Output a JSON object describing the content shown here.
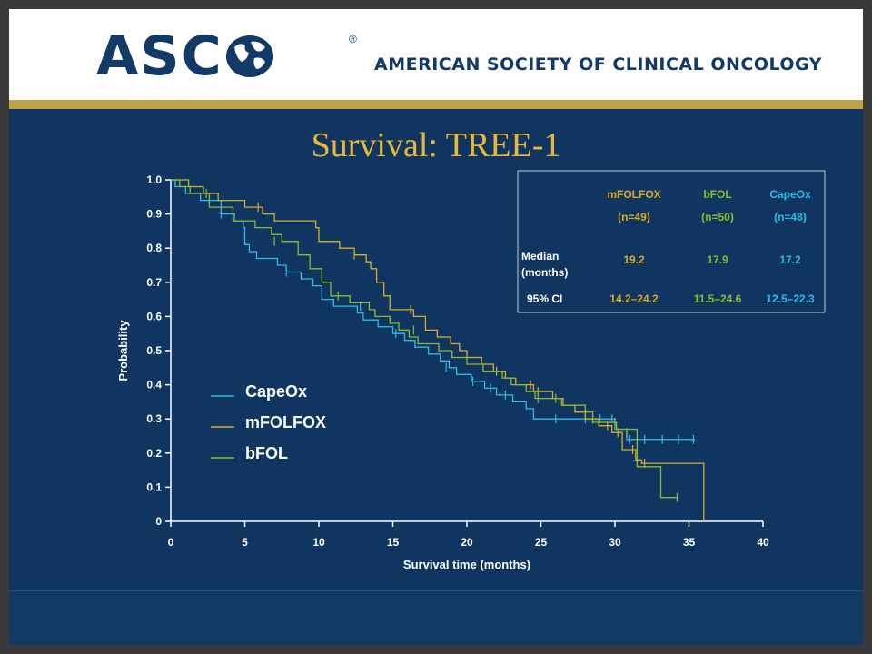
{
  "header": {
    "logo_text": "ASC",
    "logo_reg": "®",
    "org_name": "AMERICAN SOCIETY OF CLINICAL ONCOLOGY"
  },
  "slide_title": "Survival: TREE-1",
  "colors": {
    "CapeOx": "#2bbde6",
    "mFOLFOX": "#d4ad2c",
    "bFOL": "#8dbb2c",
    "background": "#0f3560",
    "title": "#e9b739"
  },
  "legend": [
    {
      "name": "CapeOx",
      "color": "#2bbde6"
    },
    {
      "name": "mFOLFOX",
      "color": "#d4ad2c"
    },
    {
      "name": "bFOL",
      "color": "#8dbb2c"
    }
  ],
  "median_table": {
    "columns": [
      {
        "name": "mFOLFOX",
        "n": "(n=49)",
        "median": "19.2",
        "ci": "14.2–24.2",
        "color": "#d4ad2c"
      },
      {
        "name": "bFOL",
        "n": "(n=50)",
        "median": "17.9",
        "ci": "11.5–24.6",
        "color": "#8dbb2c"
      },
      {
        "name": "CapeOx",
        "n": "(n=48)",
        "median": "17.2",
        "ci": "12.5–22.3",
        "color": "#2bbde6"
      }
    ],
    "row_label_median_1": "Median",
    "row_label_median_2": "(months)",
    "row_label_ci": "95% CI"
  },
  "chart_data": {
    "type": "line",
    "xlabel": "Survival time (months)",
    "ylabel": "Probability",
    "xlim": [
      0,
      40
    ],
    "ylim": [
      0,
      1
    ],
    "xticks": [
      0,
      5,
      10,
      15,
      20,
      25,
      30,
      35,
      40
    ],
    "xtick_labels": [
      "0",
      "5",
      "10",
      "15",
      "20",
      "25",
      "30",
      "35",
      "40"
    ],
    "yticks": [
      0,
      0.1,
      0.2,
      0.3,
      0.4,
      0.5,
      0.6,
      0.7,
      0.8,
      0.9,
      1.0
    ],
    "ytick_labels": [
      "0",
      "0.1",
      "0.2",
      "0.3",
      "0.4",
      "0.5",
      "0.6",
      "0.7",
      "0.8",
      "0.9",
      "1.0"
    ],
    "series": [
      {
        "name": "CapeOx",
        "color": "#2bbde6",
        "steps": [
          [
            0,
            1.0
          ],
          [
            0.3,
            0.98
          ],
          [
            1.0,
            0.96
          ],
          [
            2.0,
            0.94
          ],
          [
            3.4,
            0.9
          ],
          [
            4.3,
            0.88
          ],
          [
            4.9,
            0.86
          ],
          [
            5.0,
            0.81
          ],
          [
            5.3,
            0.79
          ],
          [
            5.8,
            0.77
          ],
          [
            7.2,
            0.75
          ],
          [
            7.8,
            0.73
          ],
          [
            8.8,
            0.71
          ],
          [
            9.6,
            0.69
          ],
          [
            10.2,
            0.65
          ],
          [
            11.0,
            0.63
          ],
          [
            12.0,
            0.63
          ],
          [
            12.6,
            0.61
          ],
          [
            13.0,
            0.59
          ],
          [
            14.0,
            0.57
          ],
          [
            15.0,
            0.55
          ],
          [
            15.8,
            0.53
          ],
          [
            16.5,
            0.51
          ],
          [
            17.4,
            0.49
          ],
          [
            18.2,
            0.47
          ],
          [
            18.8,
            0.45
          ],
          [
            19.3,
            0.43
          ],
          [
            20.3,
            0.41
          ],
          [
            21.2,
            0.39
          ],
          [
            22.0,
            0.37
          ],
          [
            23.1,
            0.35
          ],
          [
            24.0,
            0.33
          ],
          [
            24.5,
            0.3
          ],
          [
            29.5,
            0.3
          ],
          [
            30.0,
            0.27
          ],
          [
            30.8,
            0.24
          ],
          [
            35.4,
            0.24
          ]
        ],
        "censors": [
          [
            3.4,
            0.9
          ],
          [
            7.8,
            0.73
          ],
          [
            12.8,
            0.63
          ],
          [
            15.2,
            0.55
          ],
          [
            18.6,
            0.45
          ],
          [
            20.4,
            0.41
          ],
          [
            21.6,
            0.39
          ],
          [
            22.6,
            0.37
          ],
          [
            26.0,
            0.3
          ],
          [
            28.0,
            0.3
          ],
          [
            29.0,
            0.3
          ],
          [
            29.8,
            0.3
          ],
          [
            31.0,
            0.24
          ],
          [
            32.0,
            0.24
          ],
          [
            33.2,
            0.24
          ],
          [
            34.3,
            0.24
          ],
          [
            35.3,
            0.24
          ]
        ]
      },
      {
        "name": "mFOLFOX",
        "color": "#d4ad2c",
        "steps": [
          [
            0,
            1.0
          ],
          [
            1.2,
            0.98
          ],
          [
            2.2,
            0.96
          ],
          [
            3.2,
            0.94
          ],
          [
            5.0,
            0.92
          ],
          [
            6.2,
            0.9
          ],
          [
            7.0,
            0.88
          ],
          [
            8.8,
            0.88
          ],
          [
            9.8,
            0.86
          ],
          [
            10.0,
            0.82
          ],
          [
            11.4,
            0.8
          ],
          [
            12.4,
            0.78
          ],
          [
            13.2,
            0.76
          ],
          [
            13.5,
            0.74
          ],
          [
            13.9,
            0.7
          ],
          [
            14.4,
            0.66
          ],
          [
            14.8,
            0.62
          ],
          [
            16.4,
            0.6
          ],
          [
            17.2,
            0.56
          ],
          [
            18.0,
            0.54
          ],
          [
            18.9,
            0.52
          ],
          [
            19.5,
            0.5
          ],
          [
            20.0,
            0.48
          ],
          [
            21.0,
            0.46
          ],
          [
            21.8,
            0.44
          ],
          [
            22.6,
            0.42
          ],
          [
            23.3,
            0.4
          ],
          [
            24.5,
            0.38
          ],
          [
            25.8,
            0.36
          ],
          [
            26.5,
            0.34
          ],
          [
            27.3,
            0.32
          ],
          [
            28.0,
            0.3
          ],
          [
            28.9,
            0.28
          ],
          [
            29.8,
            0.26
          ],
          [
            30.5,
            0.21
          ],
          [
            31.4,
            0.18
          ],
          [
            31.8,
            0.17
          ],
          [
            36.0,
            0.17
          ],
          [
            36.0,
            0
          ]
        ],
        "censors": [
          [
            5.9,
            0.92
          ],
          [
            12.4,
            0.78
          ],
          [
            16.2,
            0.62
          ],
          [
            22.0,
            0.44
          ],
          [
            24.3,
            0.4
          ],
          [
            24.8,
            0.38
          ],
          [
            28.5,
            0.3
          ],
          [
            29.5,
            0.28
          ],
          [
            30.2,
            0.26
          ],
          [
            30.8,
            0.26
          ],
          [
            31.2,
            0.21
          ],
          [
            32.0,
            0.17
          ]
        ]
      },
      {
        "name": "bFOL",
        "color": "#8dbb2c",
        "steps": [
          [
            0,
            1.0
          ],
          [
            0.6,
            0.98
          ],
          [
            1.3,
            0.96
          ],
          [
            2.6,
            0.92
          ],
          [
            4.2,
            0.88
          ],
          [
            5.7,
            0.86
          ],
          [
            6.8,
            0.84
          ],
          [
            7.5,
            0.82
          ],
          [
            8.6,
            0.78
          ],
          [
            9.4,
            0.74
          ],
          [
            10.2,
            0.7
          ],
          [
            10.8,
            0.66
          ],
          [
            12.1,
            0.64
          ],
          [
            13.4,
            0.62
          ],
          [
            13.8,
            0.6
          ],
          [
            14.8,
            0.58
          ],
          [
            15.4,
            0.56
          ],
          [
            16.1,
            0.54
          ],
          [
            16.7,
            0.52
          ],
          [
            18.1,
            0.5
          ],
          [
            19.0,
            0.48
          ],
          [
            20.0,
            0.46
          ],
          [
            21.1,
            0.44
          ],
          [
            22.4,
            0.42
          ],
          [
            23.0,
            0.4
          ],
          [
            24.0,
            0.38
          ],
          [
            24.6,
            0.36
          ],
          [
            26.4,
            0.34
          ],
          [
            27.5,
            0.34
          ],
          [
            28.0,
            0.32
          ],
          [
            28.5,
            0.29
          ],
          [
            30.1,
            0.27
          ],
          [
            31.5,
            0.16
          ],
          [
            32.7,
            0.16
          ],
          [
            33.1,
            0.07
          ],
          [
            34.2,
            0.07
          ]
        ],
        "censors": [
          [
            2.4,
            0.96
          ],
          [
            7.0,
            0.82
          ],
          [
            11.3,
            0.66
          ],
          [
            16.4,
            0.56
          ],
          [
            24.8,
            0.36
          ],
          [
            26.0,
            0.36
          ],
          [
            30.0,
            0.29
          ],
          [
            34.2,
            0.07
          ]
        ]
      }
    ]
  }
}
